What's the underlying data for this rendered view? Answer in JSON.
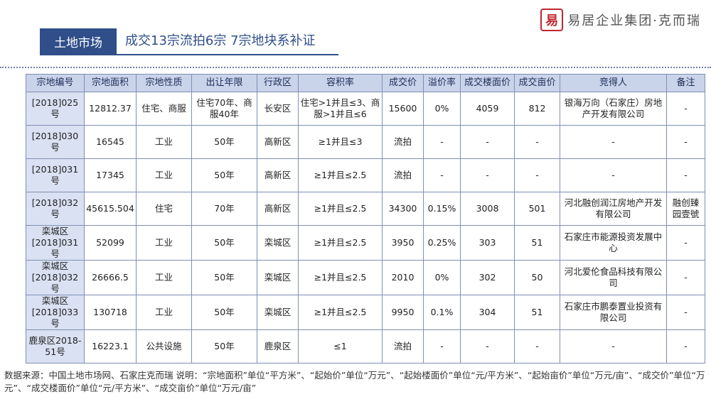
{
  "brand": {
    "mark": "易",
    "name": "易居企业集团·克而瑞"
  },
  "section_tag": "土地市场",
  "title": "成交13宗流拍6宗 7宗地块系补证",
  "table": {
    "headers": [
      "宗地编号",
      "宗地面积",
      "宗地性质",
      "出让年限",
      "行政区",
      "容积率",
      "成交价",
      "溢价率",
      "成交楼面价",
      "成交亩价",
      "竞得人",
      "备注"
    ],
    "rows": [
      [
        "[2018]025号",
        "12812.37",
        "住宅、商服",
        "住宅70年、商服40年",
        "长安区",
        "住宅>1并且≤3、商服>1并且≤6",
        "15600",
        "0%",
        "4059",
        "812",
        "银海万向（石家庄）房地产开发有限公司",
        "-"
      ],
      [
        "[2018]030号",
        "16545",
        "工业",
        "50年",
        "高新区",
        "≥1并且≤3",
        "流拍",
        "-",
        "-",
        "-",
        "-",
        "-"
      ],
      [
        "[2018]031号",
        "17345",
        "工业",
        "50年",
        "高新区",
        "≥1并且≤2.5",
        "流拍",
        "-",
        "-",
        "-",
        "-",
        "-"
      ],
      [
        "[2018]032号",
        "45615.504",
        "住宅",
        "70年",
        "高新区",
        "≥1并且≤2.5",
        "34300",
        "0.15%",
        "3008",
        "501",
        "河北融创润江房地产开发有限公司",
        "融创臻园壹號"
      ],
      [
        "栾城区[2018]031号",
        "52099",
        "工业",
        "50年",
        "栾城区",
        "≥1并且≤2.5",
        "3950",
        "0.25%",
        "303",
        "51",
        "石家庄市能源投资发展中心",
        "-"
      ],
      [
        "栾城区[2018]032号",
        "26666.5",
        "工业",
        "50年",
        "栾城区",
        "≥1并且≤2.5",
        "2010",
        "0%",
        "302",
        "50",
        "河北爱伦食品科技有限公司",
        "-"
      ],
      [
        "栾城区[2018]033号",
        "130718",
        "工业",
        "50年",
        "栾城区",
        "≥1并且≤2.5",
        "9950",
        "0.1%",
        "304",
        "51",
        "石家庄市鹏泰置业投资有限公司",
        "-"
      ],
      [
        "鹿泉区2018-51号",
        "16223.1",
        "公共设施",
        "50年",
        "鹿泉区",
        "≤1",
        "流拍",
        "-",
        "-",
        "-",
        "-",
        "-"
      ]
    ]
  },
  "footnote": "数据来源：中国土地市场网、石家庄克而瑞 说明：“宗地面积”单位“平方米”、“起始价”单位“万元”、“起始楼面价”单位“元/平方米”、“起始亩价”单位“万元/亩”、“成交价”单位“万元”、“成交楼面价”单位“元/平方米”、“成交亩价”单位“万元/亩”",
  "colors": {
    "accent": "#2f4e8a",
    "header_bg": "#c9d3ea",
    "id_col_bg": "#d9e1f2",
    "logo_red": "#c0272d"
  }
}
